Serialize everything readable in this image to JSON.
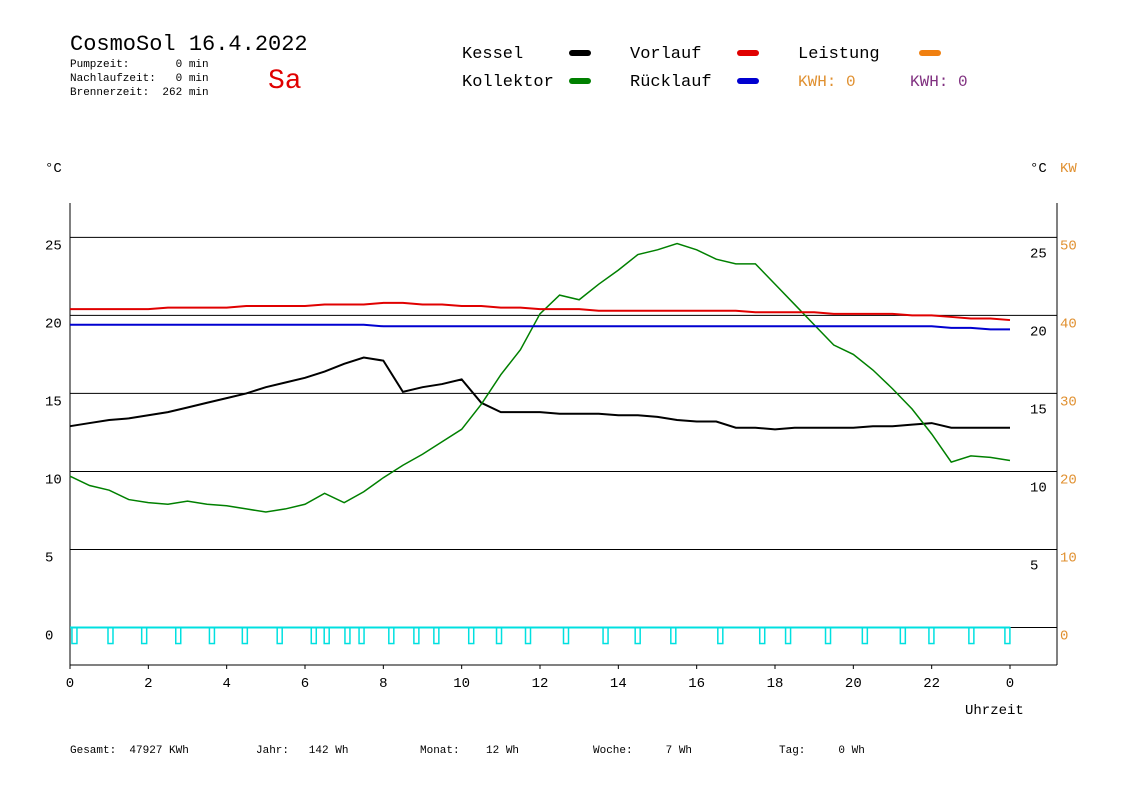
{
  "header": {
    "title": "CosmoSol 16.4.2022",
    "day": "Sa",
    "info": [
      "Pumpzeit:       0 min",
      "Nachlaufzeit:   0 min",
      "Brennerzeit:  262 min"
    ],
    "kwh": [
      "KWH: 0",
      "KWH: 0"
    ]
  },
  "footer": [
    "Gesamt:  47927 KWh",
    "Jahr:   142 Wh",
    "Monat:    12 Wh",
    "Woche:     7 Wh",
    "Tag:     0 Wh"
  ],
  "chart_data": {
    "type": "line",
    "y_label": "°C",
    "y2_label_unit": "°C",
    "y2_label": "KW",
    "x_label": "Uhrzeit",
    "x": [
      0,
      0.5,
      1,
      1.5,
      2,
      2.5,
      3,
      3.5,
      4,
      4.5,
      5,
      5.5,
      6,
      6.5,
      7,
      7.5,
      8,
      8.5,
      9,
      9.5,
      10,
      10.5,
      11,
      11.5,
      12,
      12.5,
      13,
      13.5,
      14,
      14.5,
      15,
      15.5,
      16,
      16.5,
      17,
      17.5,
      18,
      18.5,
      19,
      19.5,
      20,
      20.5,
      21,
      21.5,
      22,
      22.5,
      23,
      23.5,
      24
    ],
    "xlim": [
      0,
      25.2
    ],
    "xticks": [
      0,
      2,
      4,
      6,
      8,
      10,
      12,
      14,
      16,
      18,
      20,
      22,
      {
        "value": 24,
        "label": "0"
      }
    ],
    "ylim": [
      -2.4,
      27.2
    ],
    "yticks": [
      0,
      5,
      10,
      15,
      20,
      25
    ],
    "y2lim": [
      -4.8,
      54.4
    ],
    "y2ticks": [
      0,
      10,
      20,
      30,
      40,
      50
    ],
    "grid": true,
    "series": [
      {
        "name": "Kessel",
        "color": "#000000",
        "values": [
          12.9,
          13.1,
          13.3,
          13.4,
          13.6,
          13.8,
          14.1,
          14.4,
          14.7,
          15.0,
          15.4,
          15.7,
          16.0,
          16.4,
          16.9,
          17.3,
          17.1,
          15.1,
          15.4,
          15.6,
          15.9,
          14.4,
          13.8,
          13.8,
          13.8,
          13.7,
          13.7,
          13.7,
          13.6,
          13.6,
          13.5,
          13.3,
          13.2,
          13.2,
          12.8,
          12.8,
          12.7,
          12.8,
          12.8,
          12.8,
          12.8,
          12.9,
          12.9,
          13.0,
          13.1,
          12.8,
          12.8,
          12.8,
          12.8
        ]
      },
      {
        "name": "Kollektor",
        "color": "#008000",
        "values": [
          9.7,
          9.1,
          8.8,
          8.2,
          8.0,
          7.9,
          8.1,
          7.9,
          7.8,
          7.6,
          7.4,
          7.6,
          7.9,
          8.6,
          8.0,
          8.7,
          9.6,
          10.4,
          11.1,
          11.9,
          12.7,
          14.3,
          16.2,
          17.8,
          20.1,
          21.3,
          21.0,
          22.0,
          22.9,
          23.9,
          24.2,
          24.6,
          24.2,
          23.6,
          23.3,
          23.3,
          22.0,
          20.7,
          19.4,
          18.1,
          17.5,
          16.5,
          15.3,
          14.0,
          12.4,
          10.6,
          11.0,
          10.9,
          10.7
        ]
      },
      {
        "name": "Vorlauf",
        "color": "#e00000",
        "values": [
          20.4,
          20.4,
          20.4,
          20.4,
          20.4,
          20.5,
          20.5,
          20.5,
          20.5,
          20.6,
          20.6,
          20.6,
          20.6,
          20.7,
          20.7,
          20.7,
          20.8,
          20.8,
          20.7,
          20.7,
          20.6,
          20.6,
          20.5,
          20.5,
          20.4,
          20.4,
          20.4,
          20.3,
          20.3,
          20.3,
          20.3,
          20.3,
          20.3,
          20.3,
          20.3,
          20.2,
          20.2,
          20.2,
          20.2,
          20.1,
          20.1,
          20.1,
          20.1,
          20.0,
          20.0,
          19.9,
          19.8,
          19.8,
          19.7
        ]
      },
      {
        "name": "Rücklauf",
        "color": "#0000d0",
        "values": [
          19.4,
          19.4,
          19.4,
          19.4,
          19.4,
          19.4,
          19.4,
          19.4,
          19.4,
          19.4,
          19.4,
          19.4,
          19.4,
          19.4,
          19.4,
          19.4,
          19.3,
          19.3,
          19.3,
          19.3,
          19.3,
          19.3,
          19.3,
          19.3,
          19.3,
          19.3,
          19.3,
          19.3,
          19.3,
          19.3,
          19.3,
          19.3,
          19.3,
          19.3,
          19.3,
          19.3,
          19.3,
          19.3,
          19.3,
          19.3,
          19.3,
          19.3,
          19.3,
          19.3,
          19.3,
          19.2,
          19.2,
          19.1,
          19.1
        ]
      },
      {
        "name": "Leistung",
        "color": "#f08010",
        "axis": "y2",
        "values": [
          null,
          null,
          null,
          null,
          null,
          null,
          null,
          null,
          null,
          null,
          null,
          null,
          null,
          null,
          null,
          null,
          null,
          null,
          null,
          null,
          null,
          null,
          null,
          null,
          null,
          null,
          null,
          null,
          null,
          null,
          null,
          null,
          null,
          null,
          null,
          null,
          null,
          null,
          null,
          null,
          null,
          null,
          null,
          null,
          null,
          null,
          null,
          null,
          null
        ]
      }
    ],
    "pulses": {
      "color": "#00e0e0",
      "x": [
        0.05,
        0.97,
        1.83,
        2.7,
        3.56,
        4.4,
        5.29,
        6.16,
        6.49,
        7.02,
        7.38,
        8.14,
        8.78,
        9.29,
        10.18,
        10.89,
        11.63,
        12.6,
        13.61,
        14.43,
        15.34,
        16.54,
        17.61,
        18.27,
        19.29,
        20.23,
        21.2,
        21.93,
        22.95,
        23.87
      ]
    }
  }
}
